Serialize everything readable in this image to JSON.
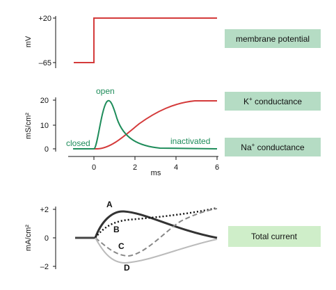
{
  "panel_voltage": {
    "ylabel": "mV",
    "ticks": [
      "+20",
      "–65"
    ],
    "box_label": "membrane potential",
    "trace_color": "#d43a3a"
  },
  "panel_conductance": {
    "ylabel": "mS/cm²",
    "yticks": [
      "20",
      "10",
      "0"
    ],
    "xticks": [
      "0",
      "2",
      "4",
      "6"
    ],
    "xlabel": "ms",
    "label_open": "open",
    "label_closed": "closed",
    "label_inactivated": "inactivated",
    "k_box": {
      "prefix": "K",
      "sup": "+",
      "suffix": " conductance"
    },
    "na_box": {
      "prefix": "Na",
      "sup": "+",
      "suffix": " conductance"
    },
    "colors": {
      "na": "#1e8c5a",
      "k": "#d43a3a",
      "box": "#b5dcc4"
    }
  },
  "panel_current": {
    "ylabel": "mA/cm²",
    "yticks": [
      "+2",
      "0",
      "–2"
    ],
    "curve_labels": [
      "A",
      "B",
      "C",
      "D"
    ],
    "box_label": "Total current",
    "box_color": "#cfeec9"
  }
}
